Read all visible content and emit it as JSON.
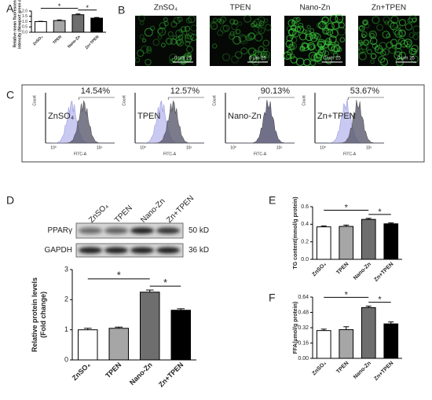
{
  "panels": [
    "A",
    "B",
    "C",
    "D",
    "E",
    "F"
  ],
  "microscopy": {
    "titles": [
      "ZnSO₄",
      "TPEN",
      "Nano-Zn",
      "Zn+TPEN"
    ],
    "scale_bar": "0 μm 25"
  },
  "flow": {
    "y_label": "Count",
    "x_label": "FITC-A",
    "xticks": [
      "10⁰",
      "10⁵"
    ],
    "panels": [
      {
        "label": "ZnSO₄",
        "percent": "14.54%"
      },
      {
        "label": "TPEN",
        "percent": "12.57%"
      },
      {
        "label": "Nano-Zn",
        "percent": "90.13%"
      },
      {
        "label": "Zn+TPEN",
        "percent": "53.67%"
      }
    ]
  },
  "western": {
    "lanes": [
      "ZnSO₄",
      "TPEN",
      "Nano-Zn",
      "Zn+TPEN"
    ],
    "rows": [
      {
        "label": "PPARγ",
        "size": "50 kD"
      },
      {
        "label": "GAPDH",
        "size": "36 kD"
      }
    ]
  },
  "chart_data": [
    {
      "type": "bar",
      "y_label": [
        "Relative mean fluorescence",
        "intensity (Newport green dcf)"
      ],
      "categories": [
        "ZnSO₄",
        "TPEN",
        "Nano-Zn",
        "Zn+TPEN"
      ],
      "values": [
        1.0,
        1.1,
        1.65,
        1.33
      ],
      "errors": [
        0.03,
        0.06,
        0.07,
        0.06
      ],
      "colors": [
        "#ffffff",
        "#a6a6a6",
        "#6e6e6e",
        "#000000"
      ],
      "ylim": [
        0,
        2
      ],
      "yticks": [
        {
          "value": 0,
          "label": "0.0"
        },
        {
          "value": 0.5,
          "label": "0.5"
        },
        {
          "value": 1,
          "label": "1.0"
        },
        {
          "value": 1.5,
          "label": "1.5"
        },
        {
          "value": 2,
          "label": "2.0"
        }
      ],
      "annotations": [
        {
          "text": "*",
          "between": [
            0,
            2
          ]
        },
        {
          "text": "*",
          "between": [
            2,
            3
          ]
        }
      ]
    },
    {
      "type": "bar",
      "y_label": [
        "Relative protein levels",
        "(Fold change)"
      ],
      "categories": [
        "ZnSO₄",
        "TPEN",
        "Nano-Zn",
        "Zn+TPEN"
      ],
      "values": [
        1.0,
        1.05,
        2.25,
        1.65
      ],
      "errors": [
        0.05,
        0.04,
        0.07,
        0.05
      ],
      "colors": [
        "#ffffff",
        "#a6a6a6",
        "#6e6e6e",
        "#000000"
      ],
      "ylim": [
        0,
        3
      ],
      "yticks": [
        0,
        1,
        2,
        3
      ],
      "annotations": [
        {
          "text": "*",
          "between": [
            0,
            2
          ]
        },
        {
          "text": "*",
          "between": [
            2,
            3
          ]
        }
      ]
    },
    {
      "type": "bar",
      "y_label": [
        "TG content(mmol/g protein)"
      ],
      "categories": [
        "ZnSO₄",
        "TPEN",
        "Nano-Zn",
        "Zn+TPEN"
      ],
      "values": [
        0.37,
        0.375,
        0.455,
        0.405
      ],
      "errors": [
        0.01,
        0.015,
        0.012,
        0.01
      ],
      "colors": [
        "#ffffff",
        "#a6a6a6",
        "#6e6e6e",
        "#000000"
      ],
      "ylim": [
        0,
        0.6
      ],
      "yticks": [
        {
          "value": 0,
          "label": "0.0"
        },
        0.2,
        0.4,
        0.6
      ],
      "annotations": [
        {
          "text": "*",
          "between": [
            0,
            2
          ]
        },
        {
          "text": "*",
          "between": [
            2,
            3
          ]
        }
      ]
    },
    {
      "type": "bar",
      "y_label": [
        "FFA(μmol/g protein)"
      ],
      "categories": [
        "ZnSO₄",
        "TPEN",
        "Nano-Zn",
        "Zn+TPEN"
      ],
      "values": [
        0.29,
        0.3,
        0.53,
        0.36
      ],
      "errors": [
        0.015,
        0.03,
        0.015,
        0.02
      ],
      "colors": [
        "#ffffff",
        "#a6a6a6",
        "#6e6e6e",
        "#000000"
      ],
      "ylim": [
        0,
        0.64
      ],
      "yticks": [
        {
          "value": 0,
          "label": "0.00"
        },
        0.16,
        0.32,
        0.48,
        0.64
      ],
      "annotations": [
        {
          "text": "*",
          "between": [
            0,
            2
          ]
        },
        {
          "text": "*",
          "between": [
            2,
            3
          ]
        }
      ]
    }
  ]
}
